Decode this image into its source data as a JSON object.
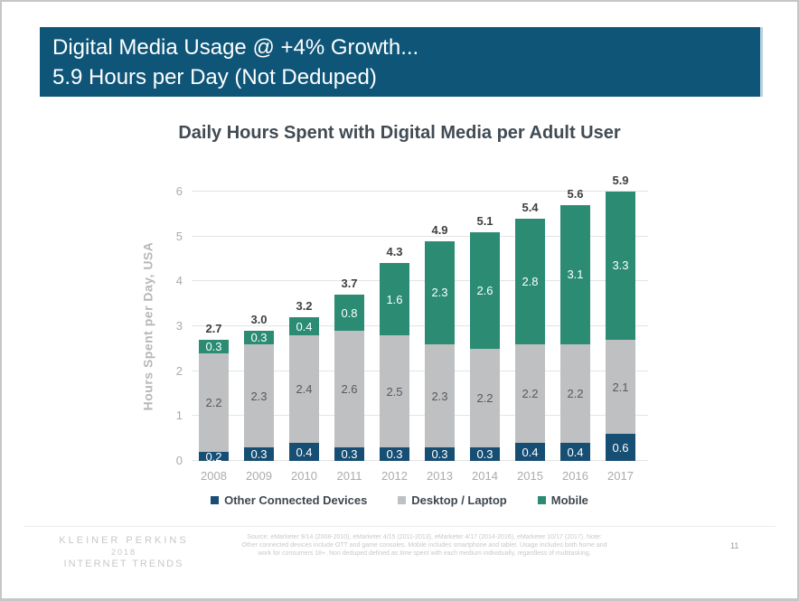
{
  "slide": {
    "header": {
      "line1": "Digital Media Usage @ +4% Growth...",
      "line2": "5.9 Hours per Day (Not Deduped)",
      "bg_color": "#0e5578"
    },
    "footer": {
      "brand_line1": "KLEINER PERKINS",
      "brand_line2": "2018",
      "brand_line3": "INTERNET TRENDS",
      "source_lines": [
        "Source: eMarketer 9/14 (2008-2010), eMarketer 4/15 (2011-2013), eMarketer 4/17 (2014-2016), eMarketer 10/17 (2017).  Note:",
        "Other connected devices include OTT and game consoles. Mobile includes smartphone and tablet. Usage includes both home and",
        "work for consumers 18+. Non deduped defined as time spent with each medium individually, regardless of multitasking."
      ],
      "page_number": "11"
    }
  },
  "chart_data": {
    "type": "bar",
    "stacked": true,
    "title": "Daily Hours Spent with Digital Media per Adult User",
    "ylabel": "Hours Spent per Day, USA",
    "xlabel": "",
    "categories": [
      "2008",
      "2009",
      "2010",
      "2011",
      "2012",
      "2013",
      "2014",
      "2015",
      "2016",
      "2017"
    ],
    "series": [
      {
        "name": "Other Connected Devices",
        "color": "#174e74",
        "label_color": "#ffffff",
        "values": [
          0.2,
          0.3,
          0.4,
          0.3,
          0.3,
          0.3,
          0.3,
          0.4,
          0.4,
          0.6
        ]
      },
      {
        "name": "Desktop / Laptop",
        "color": "#bfc0c2",
        "label_color": "#58595b",
        "values": [
          2.2,
          2.3,
          2.4,
          2.6,
          2.5,
          2.3,
          2.2,
          2.2,
          2.2,
          2.1
        ]
      },
      {
        "name": "Mobile",
        "color": "#2b8c73",
        "label_color": "#ffffff",
        "values": [
          0.3,
          0.3,
          0.4,
          0.8,
          1.6,
          2.3,
          2.6,
          2.8,
          3.1,
          3.3
        ]
      }
    ],
    "totals": [
      "2.7",
      "3.0",
      "3.2",
      "3.7",
      "4.3",
      "4.9",
      "5.1",
      "5.4",
      "5.6",
      "5.9"
    ],
    "ylim": [
      0,
      6
    ],
    "yticks": [
      0,
      1,
      2,
      3,
      4,
      5,
      6
    ],
    "grid": true,
    "legend_position": "bottom"
  }
}
